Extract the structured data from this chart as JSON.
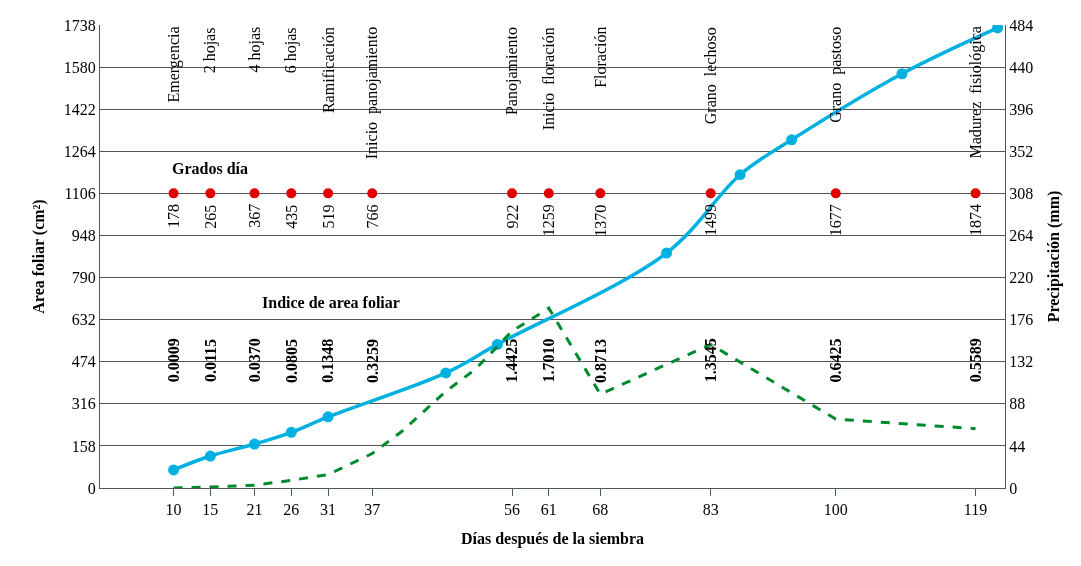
{
  "chart_data": {
    "type": "line",
    "xlabel": "Días después de la siembra",
    "ylabel": "Area foliar (cm²)",
    "y2label": "Precipitación (mm)",
    "xlim": [
      0,
      123
    ],
    "xticks": [
      10,
      15,
      21,
      26,
      31,
      37,
      56,
      61,
      68,
      83,
      100,
      119
    ],
    "ylim": [
      0,
      1738
    ],
    "yticks": [
      0,
      158,
      316,
      474,
      632,
      790,
      948,
      1106,
      1264,
      1422,
      1580,
      1738
    ],
    "y2lim": [
      0,
      484
    ],
    "y2ticks": [
      0,
      44,
      88,
      132,
      176,
      220,
      264,
      308,
      352,
      396,
      440,
      484
    ],
    "grid": "y",
    "legend": false,
    "series": [
      {
        "color": "#00b0e0",
        "marker": "circle",
        "line_style": "solid",
        "x": [
          10,
          15,
          21,
          26,
          31,
          47,
          54,
          77,
          87,
          94,
          109,
          122
        ],
        "values": [
          68,
          120,
          165,
          209,
          267,
          432,
          539,
          882,
          1176,
          1307,
          1555,
          1727
        ]
      },
      {
        "axis": "y2",
        "color": "#008a2e",
        "marker": "none",
        "line_style": "dashed",
        "x": [
          10,
          15,
          21,
          26,
          31,
          37,
          41,
          47,
          51,
          56,
          61,
          68,
          83,
          100,
          119
        ],
        "values": [
          0,
          1,
          3,
          8,
          14,
          36,
          59,
          101,
          124,
          164,
          188,
          98,
          150,
          72,
          62
        ]
      },
      {
        "type": "scatter",
        "name": "Grados día",
        "color": "#e00000",
        "marker": "circle",
        "x": [
          10,
          15,
          21,
          26,
          31,
          37,
          56,
          61,
          68,
          83,
          100,
          119
        ],
        "values": [
          1106,
          1106,
          1106,
          1106,
          1106,
          1106,
          1106,
          1106,
          1106,
          1106,
          1106,
          1106
        ]
      }
    ],
    "annotations": [
      "Emergencia",
      "2 hojas",
      "4 hojas",
      "6 hojas",
      "Ramificación",
      "Inicio  panojamiento",
      "Panojamiento",
      "Inicio  floración",
      "Floración",
      "Grano  lechoso",
      "Grano  pastoso",
      "Madurez  fisiológica",
      "178",
      "265",
      "367",
      "435",
      "519",
      "766",
      "922",
      "1259",
      "1370",
      "1499",
      "1677",
      "1874",
      "Indice de area foliar",
      "0.0009",
      "0.0115",
      "0.0370",
      "0.0805",
      "0.1348",
      "0.3259",
      "1.4425",
      "1.7010",
      "0.8713",
      "1.3545",
      "0.6425",
      "0.5589"
    ]
  }
}
